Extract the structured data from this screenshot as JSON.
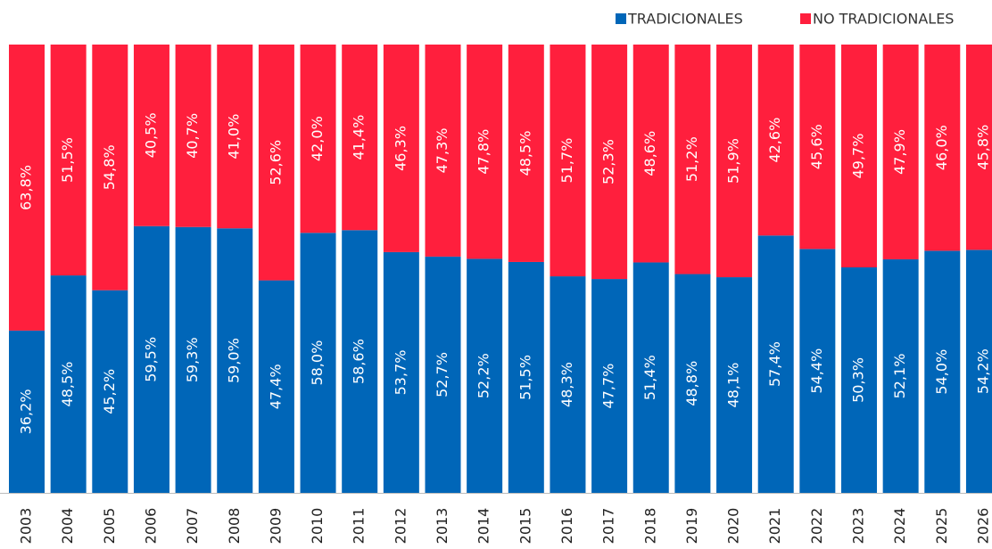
{
  "chart_data": {
    "type": "stacked_bar_100",
    "categories": [
      "2003",
      "2004",
      "2005",
      "2006",
      "2007",
      "2008",
      "2009",
      "2010",
      "2011",
      "2012",
      "2013",
      "2014",
      "2015",
      "2016",
      "2017",
      "2018",
      "2019",
      "2020",
      "2021",
      "2022",
      "2023",
      "2024",
      "2025",
      "2026"
    ],
    "series": [
      {
        "name": "TRADICIONALES",
        "color": "#0066b8",
        "values": [
          36.2,
          48.5,
          45.2,
          59.5,
          59.3,
          59.0,
          47.4,
          58.0,
          58.6,
          53.7,
          52.7,
          52.2,
          51.5,
          48.3,
          47.7,
          51.4,
          48.8,
          48.1,
          57.4,
          54.4,
          50.3,
          52.1,
          54.0,
          54.2
        ],
        "value_labels": [
          "36,2%",
          "48,5%",
          "45,2%",
          "59,5%",
          "59,3%",
          "59,0%",
          "47,4%",
          "58,0%",
          "58,6%",
          "53,7%",
          "52,7%",
          "52,2%",
          "51,5%",
          "48,3%",
          "47,7%",
          "51,4%",
          "48,8%",
          "48,1%",
          "57,4%",
          "54,4%",
          "50,3%",
          "52,1%",
          "54,0%",
          "54,2%"
        ]
      },
      {
        "name": "NO TRADICIONALES",
        "color": "#ff1f3d",
        "values": [
          63.8,
          51.5,
          54.8,
          40.5,
          40.7,
          41.0,
          52.6,
          42.0,
          41.4,
          46.3,
          47.3,
          47.8,
          48.5,
          51.7,
          52.3,
          48.6,
          51.2,
          51.9,
          42.6,
          45.6,
          49.7,
          47.9,
          46.0,
          45.8
        ],
        "value_labels": [
          "63,8%",
          "51,5%",
          "54,8%",
          "40,5%",
          "40,7%",
          "41,0%",
          "52,6%",
          "42,0%",
          "41,4%",
          "46,3%",
          "47,3%",
          "47,8%",
          "48,5%",
          "51,7%",
          "52,3%",
          "48,6%",
          "51,2%",
          "51,9%",
          "42,6%",
          "45,6%",
          "49,7%",
          "47,9%",
          "46,0%",
          "45,8%"
        ]
      }
    ],
    "ylim": [
      0,
      100
    ],
    "legend": "top-right"
  }
}
